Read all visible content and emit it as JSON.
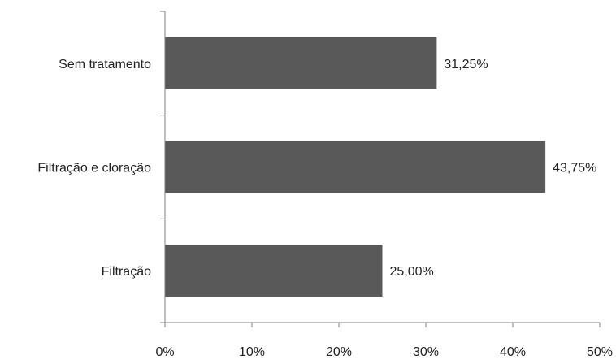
{
  "chart_data": {
    "type": "bar",
    "orientation": "horizontal",
    "categories": [
      "Sem tratamento",
      "Filtração e cloração",
      "Filtração"
    ],
    "values": [
      31.25,
      43.75,
      25.0
    ],
    "value_labels": [
      "31,25%",
      "43,75%",
      "25,00%"
    ],
    "xlim": [
      0,
      50
    ],
    "x_ticks": [
      0,
      10,
      20,
      30,
      40,
      50
    ],
    "x_tick_labels": [
      "0%",
      "10%",
      "20%",
      "30%",
      "40%",
      "50%"
    ],
    "title": "",
    "xlabel": "",
    "ylabel": "",
    "grid": false,
    "legend": "none",
    "colors": {
      "bar": "#595959",
      "axis": "#7f7f7f",
      "text": "#222222"
    }
  }
}
